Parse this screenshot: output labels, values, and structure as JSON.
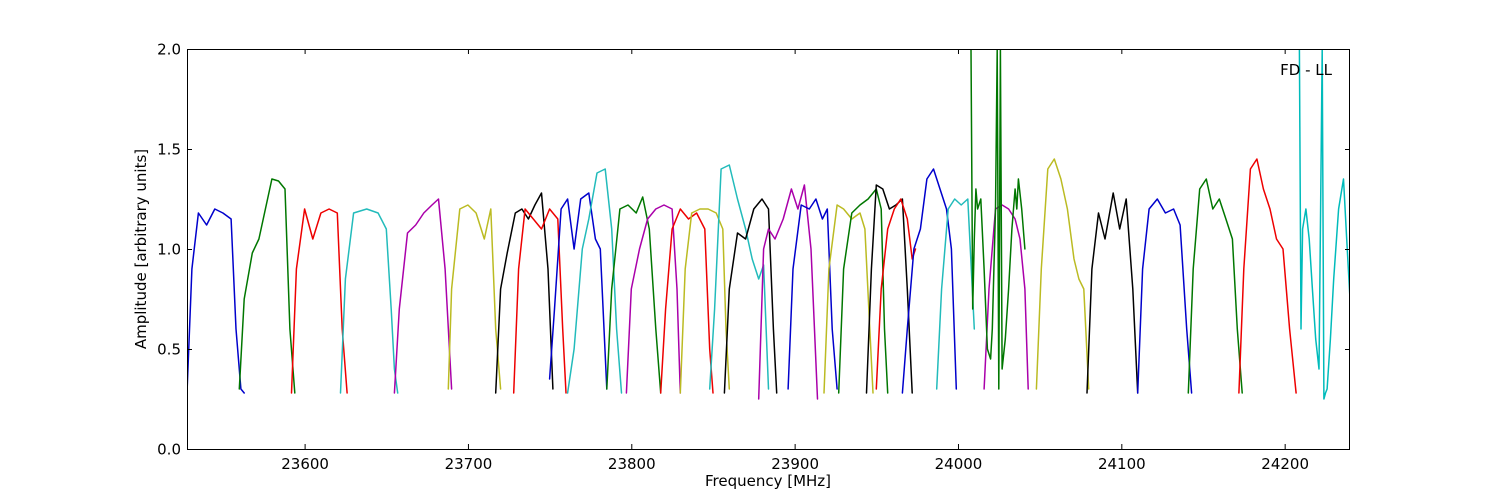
{
  "chart_data": {
    "type": "line",
    "title": "",
    "xlabel": "Frequency [MHz]",
    "ylabel": "Amplitude [arbitrary units]",
    "xlim": [
      23528,
      24240
    ],
    "ylim": [
      0.0,
      2.0
    ],
    "grid": false,
    "x_ticks": [
      23600,
      23700,
      23800,
      23900,
      24000,
      24100,
      24200
    ],
    "x_tick_labels": [
      "23600",
      "23700",
      "23800",
      "23900",
      "24000",
      "24100",
      "24200"
    ],
    "y_ticks": [
      0.0,
      0.5,
      1.0,
      1.5,
      2.0
    ],
    "y_tick_labels": [
      "0.0",
      "0.5",
      "1.0",
      "1.5",
      "2.0"
    ],
    "annotation": "FD - LL",
    "series": [
      {
        "color": "#0000cc",
        "x": [
          23528,
          23531,
          23535,
          23540,
          23545,
          23550,
          23555,
          23558,
          23561,
          23563
        ],
        "y": [
          0.28,
          0.9,
          1.18,
          1.12,
          1.2,
          1.18,
          1.15,
          0.6,
          0.3,
          0.28
        ]
      },
      {
        "color": "#007700",
        "x": [
          23560,
          23563,
          23568,
          23572,
          23576,
          23580,
          23584,
          23588,
          23591,
          23594
        ],
        "y": [
          0.3,
          0.75,
          0.98,
          1.05,
          1.2,
          1.35,
          1.34,
          1.3,
          0.6,
          0.28
        ]
      },
      {
        "color": "#ee0000",
        "x": [
          23592,
          23595,
          23600,
          23605,
          23610,
          23615,
          23620,
          23623,
          23626
        ],
        "y": [
          0.28,
          0.9,
          1.2,
          1.05,
          1.18,
          1.2,
          1.18,
          0.6,
          0.28
        ]
      },
      {
        "color": "#22bbbb",
        "x": [
          23622,
          23625,
          23630,
          23638,
          23645,
          23650,
          23653,
          23655,
          23657
        ],
        "y": [
          0.28,
          0.85,
          1.18,
          1.2,
          1.18,
          1.1,
          0.7,
          0.4,
          0.28
        ]
      },
      {
        "color": "#aa00aa",
        "x": [
          23655,
          23658,
          23663,
          23668,
          23673,
          23678,
          23682,
          23686,
          23690
        ],
        "y": [
          0.28,
          0.7,
          1.08,
          1.12,
          1.18,
          1.22,
          1.25,
          0.9,
          0.3
        ]
      },
      {
        "color": "#bbbb22",
        "x": [
          23688,
          23690,
          23695,
          23700,
          23705,
          23710,
          23714,
          23717,
          23720
        ],
        "y": [
          0.3,
          0.8,
          1.2,
          1.22,
          1.18,
          1.05,
          1.2,
          0.6,
          0.3
        ]
      },
      {
        "color": "#000000",
        "x": [
          23717,
          23720,
          23724,
          23729,
          23733,
          23737,
          23741,
          23745,
          23749,
          23752
        ],
        "y": [
          0.28,
          0.8,
          0.98,
          1.18,
          1.2,
          1.15,
          1.22,
          1.28,
          0.9,
          0.3
        ]
      },
      {
        "color": "#ee0000",
        "x": [
          23728,
          23731,
          23735,
          23740,
          23745,
          23750,
          23755,
          23758,
          23760
        ],
        "y": [
          0.28,
          0.9,
          1.2,
          1.15,
          1.1,
          1.2,
          1.15,
          0.6,
          0.28
        ]
      },
      {
        "color": "#0000cc",
        "x": [
          23750,
          23753,
          23757,
          23761,
          23765,
          23769,
          23774,
          23778,
          23781,
          23785
        ],
        "y": [
          0.35,
          0.7,
          1.2,
          1.25,
          1.0,
          1.25,
          1.28,
          1.05,
          1.0,
          0.3
        ]
      },
      {
        "color": "#22bbbb",
        "x": [
          23761,
          23765,
          23770,
          23774,
          23779,
          23784,
          23788,
          23791,
          23794
        ],
        "y": [
          0.28,
          0.5,
          1.0,
          1.15,
          1.38,
          1.4,
          1.1,
          0.6,
          0.28
        ]
      },
      {
        "color": "#007700",
        "x": [
          23785,
          23788,
          23793,
          23798,
          23803,
          23807,
          23811,
          23815,
          23818
        ],
        "y": [
          0.3,
          0.8,
          1.2,
          1.22,
          1.18,
          1.26,
          1.1,
          0.6,
          0.28
        ]
      },
      {
        "color": "#aa00aa",
        "x": [
          23797,
          23800,
          23805,
          23810,
          23815,
          23820,
          23825,
          23828,
          23830
        ],
        "y": [
          0.28,
          0.8,
          1.0,
          1.15,
          1.2,
          1.22,
          1.2,
          0.8,
          0.28
        ]
      },
      {
        "color": "#ee0000",
        "x": [
          23818,
          23821,
          23825,
          23830,
          23835,
          23840,
          23845,
          23848,
          23850
        ],
        "y": [
          0.28,
          0.7,
          1.1,
          1.2,
          1.15,
          1.18,
          1.1,
          0.5,
          0.28
        ]
      },
      {
        "color": "#bbbb22",
        "x": [
          23830,
          23833,
          23837,
          23842,
          23847,
          23852,
          23856,
          23858,
          23860
        ],
        "y": [
          0.28,
          0.9,
          1.18,
          1.2,
          1.2,
          1.18,
          1.1,
          0.6,
          0.3
        ]
      },
      {
        "color": "#22bbbb",
        "x": [
          23848,
          23851,
          23855,
          23860,
          23865,
          23870,
          23874,
          23878,
          23881,
          23884
        ],
        "y": [
          0.3,
          0.7,
          1.4,
          1.42,
          1.25,
          1.1,
          0.95,
          0.85,
          0.92,
          0.3
        ]
      },
      {
        "color": "#000000",
        "x": [
          23857,
          23860,
          23865,
          23870,
          23875,
          23880,
          23884,
          23887,
          23889
        ],
        "y": [
          0.28,
          0.8,
          1.08,
          1.05,
          1.2,
          1.25,
          1.2,
          0.6,
          0.28
        ]
      },
      {
        "color": "#aa00aa",
        "x": [
          23878,
          23881,
          23884,
          23888,
          23893,
          23898,
          23902,
          23906,
          23910,
          23914
        ],
        "y": [
          0.25,
          1.0,
          1.1,
          1.05,
          1.15,
          1.3,
          1.2,
          1.32,
          1.0,
          0.25
        ]
      },
      {
        "color": "#0000cc",
        "x": [
          23896,
          23899,
          23904,
          23909,
          23913,
          23917,
          23920,
          23923,
          23926
        ],
        "y": [
          0.3,
          0.9,
          1.22,
          1.2,
          1.25,
          1.15,
          1.2,
          0.6,
          0.3
        ]
      },
      {
        "color": "#bbbb22",
        "x": [
          23918,
          23921,
          23926,
          23930,
          23935,
          23940,
          23943,
          23946,
          23948
        ],
        "y": [
          0.28,
          0.9,
          1.22,
          1.2,
          1.15,
          1.18,
          1.1,
          0.6,
          0.28
        ]
      },
      {
        "color": "#007700",
        "x": [
          23927,
          23930,
          23935,
          23940,
          23945,
          23950,
          23953,
          23955,
          23957
        ],
        "y": [
          0.28,
          0.9,
          1.18,
          1.22,
          1.25,
          1.3,
          1.2,
          0.6,
          0.28
        ]
      },
      {
        "color": "#000000",
        "x": [
          23944,
          23947,
          23950,
          23954,
          23958,
          23962,
          23966,
          23969,
          23972
        ],
        "y": [
          0.28,
          0.9,
          1.32,
          1.3,
          1.2,
          1.22,
          1.25,
          0.8,
          0.28
        ]
      },
      {
        "color": "#ee0000",
        "x": [
          23950,
          23953,
          23957,
          23961,
          23965,
          23969,
          23972,
          23974
        ],
        "y": [
          0.3,
          0.8,
          1.1,
          1.2,
          1.25,
          1.15,
          0.95,
          1.0
        ]
      },
      {
        "color": "#0000cc",
        "x": [
          23966,
          23969,
          23973,
          23977,
          23981,
          23985,
          23989,
          23993,
          23996,
          23999
        ],
        "y": [
          0.28,
          0.6,
          1.0,
          1.1,
          1.35,
          1.4,
          1.3,
          1.2,
          1.0,
          0.3
        ]
      },
      {
        "color": "#22bbbb",
        "x": [
          23987,
          23990,
          23994,
          23998,
          24002,
          24006,
          24010
        ],
        "y": [
          0.3,
          0.8,
          1.2,
          1.25,
          1.22,
          1.25,
          0.6
        ]
      },
      {
        "color": "#aa00aa",
        "x": [
          24016,
          24019,
          24023,
          24027,
          24031,
          24035,
          24038,
          24041,
          24043
        ],
        "y": [
          0.3,
          0.8,
          1.2,
          1.22,
          1.2,
          1.15,
          1.05,
          0.8,
          0.3
        ]
      },
      {
        "color": "#007700",
        "x": [
          24008,
          24009,
          24010,
          24011,
          24012,
          24014,
          24016,
          24018,
          24020,
          24021,
          24022,
          24023,
          24024,
          24025,
          24026,
          24027,
          24029,
          24031,
          24033,
          24035,
          24036,
          24037,
          24039,
          24041
        ],
        "y": [
          2.0,
          0.7,
          1.05,
          1.3,
          1.2,
          1.25,
          0.9,
          0.5,
          0.45,
          0.6,
          0.9,
          1.2,
          2.0,
          0.3,
          2.0,
          0.4,
          0.55,
          0.8,
          1.1,
          1.3,
          1.2,
          1.35,
          1.2,
          1.0
        ]
      },
      {
        "color": "#bbbb22",
        "x": [
          24048,
          24051,
          24055,
          24059,
          24063,
          24067,
          24071,
          24074,
          24077,
          24080
        ],
        "y": [
          0.3,
          0.9,
          1.4,
          1.45,
          1.35,
          1.2,
          0.95,
          0.85,
          0.8,
          0.3
        ]
      },
      {
        "color": "#000000",
        "x": [
          24079,
          24082,
          24086,
          24090,
          24095,
          24099,
          24103,
          24107,
          24110
        ],
        "y": [
          0.28,
          0.9,
          1.18,
          1.05,
          1.28,
          1.1,
          1.25,
          0.8,
          0.28
        ]
      },
      {
        "color": "#0000cc",
        "x": [
          24110,
          24113,
          24117,
          24122,
          24127,
          24132,
          24136,
          24140,
          24143
        ],
        "y": [
          0.28,
          0.9,
          1.2,
          1.25,
          1.18,
          1.2,
          1.12,
          0.6,
          0.28
        ]
      },
      {
        "color": "#007700",
        "x": [
          24141,
          24144,
          24148,
          24152,
          24156,
          24160,
          24164,
          24168,
          24171,
          24174
        ],
        "y": [
          0.28,
          0.9,
          1.3,
          1.35,
          1.2,
          1.25,
          1.15,
          1.05,
          0.6,
          0.28
        ]
      },
      {
        "color": "#ee0000",
        "x": [
          24172,
          24175,
          24179,
          24183,
          24187,
          24191,
          24195,
          24199,
          24203,
          24207
        ],
        "y": [
          0.28,
          0.9,
          1.4,
          1.45,
          1.3,
          1.2,
          1.05,
          1.0,
          0.6,
          0.28
        ]
      },
      {
        "color": "#00bbbb",
        "x": [
          24209,
          24210,
          24211,
          24213,
          24215,
          24217,
          24219,
          24221,
          24223,
          24224,
          24225,
          24226,
          24228,
          24230,
          24233,
          24236,
          24238,
          24240
        ],
        "y": [
          2.0,
          0.6,
          1.1,
          1.2,
          1.05,
          0.8,
          0.55,
          0.4,
          2.0,
          0.25,
          0.28,
          0.3,
          0.55,
          0.85,
          1.2,
          1.35,
          1.05,
          0.75
        ]
      }
    ]
  }
}
